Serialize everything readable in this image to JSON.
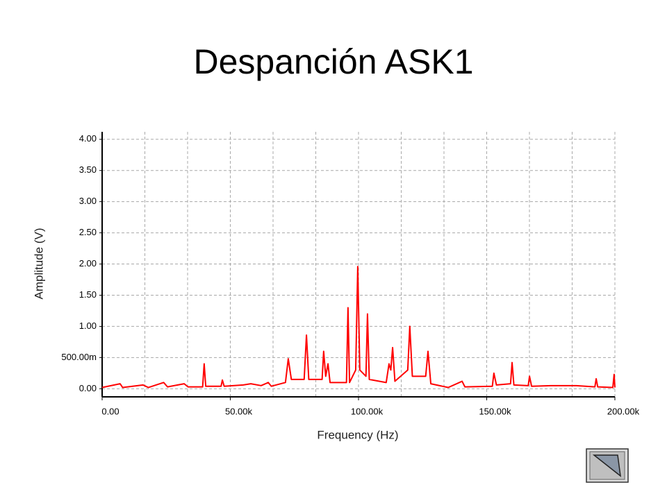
{
  "chart_data": {
    "type": "line",
    "title": "Despanción ASK1",
    "x_label": "Frequency (Hz)",
    "y_label": "Amplitude (V)",
    "xlim": [
      0,
      200000
    ],
    "ylim": [
      -0.13,
      4.12
    ],
    "xticks": [
      {
        "value": 0,
        "label": "0.00"
      },
      {
        "value": 50000,
        "label": "50.00k"
      },
      {
        "value": 100000,
        "label": "100.00k"
      },
      {
        "value": 150000,
        "label": "150.00k"
      },
      {
        "value": 200000,
        "label": "200.00k"
      }
    ],
    "xgrid": [
      16666.67,
      33333.33,
      66666.67,
      83333.33,
      116666.67,
      133333.33,
      166666.67,
      183333.33
    ],
    "yticks": [
      {
        "value": 0,
        "label": "0.00"
      },
      {
        "value": 0.5,
        "label": "500.00m"
      },
      {
        "value": 1,
        "label": "1.00"
      },
      {
        "value": 1.5,
        "label": "1.50"
      },
      {
        "value": 2,
        "label": "2.00"
      },
      {
        "value": 2.5,
        "label": "2.50"
      },
      {
        "value": 3,
        "label": "3.00"
      },
      {
        "value": 3.5,
        "label": "3.50"
      },
      {
        "value": 4,
        "label": "4.00"
      }
    ],
    "grid": true,
    "series": [
      {
        "color": "#ff0000",
        "x": [
          0,
          7000,
          8000,
          16000,
          18000,
          24000,
          25500,
          32000,
          33500,
          39200,
          39800,
          40400,
          46400,
          46900,
          47600,
          55000,
          58000,
          62000,
          64800,
          66000,
          71500,
          72600,
          73800,
          78800,
          79700,
          80600,
          85800,
          86400,
          87200,
          88100,
          88900,
          95300,
          95900,
          96500,
          98900,
          99700,
          100500,
          102900,
          103500,
          104200,
          110800,
          111900,
          112600,
          113300,
          114200,
          119200,
          120000,
          121000,
          126200,
          127100,
          128200,
          135000,
          140400,
          141500,
          152200,
          152800,
          153800,
          159300,
          159900,
          160600,
          166200,
          166700,
          167500,
          175000,
          185000,
          192200,
          192700,
          193300,
          199200,
          199700,
          200000
        ],
        "values": [
          0.02,
          0.08,
          0.02,
          0.06,
          0.02,
          0.1,
          0.03,
          0.08,
          0.03,
          0.03,
          0.4,
          0.04,
          0.04,
          0.14,
          0.04,
          0.06,
          0.08,
          0.05,
          0.1,
          0.04,
          0.1,
          0.48,
          0.15,
          0.15,
          0.86,
          0.15,
          0.15,
          0.6,
          0.2,
          0.4,
          0.1,
          0.1,
          1.3,
          0.1,
          0.3,
          1.96,
          0.3,
          0.2,
          1.2,
          0.15,
          0.1,
          0.4,
          0.3,
          0.66,
          0.12,
          0.3,
          1.0,
          0.2,
          0.2,
          0.6,
          0.08,
          0.02,
          0.12,
          0.03,
          0.04,
          0.25,
          0.06,
          0.08,
          0.42,
          0.06,
          0.05,
          0.2,
          0.04,
          0.05,
          0.05,
          0.03,
          0.16,
          0.03,
          0.02,
          0.23,
          0.02
        ]
      }
    ]
  }
}
